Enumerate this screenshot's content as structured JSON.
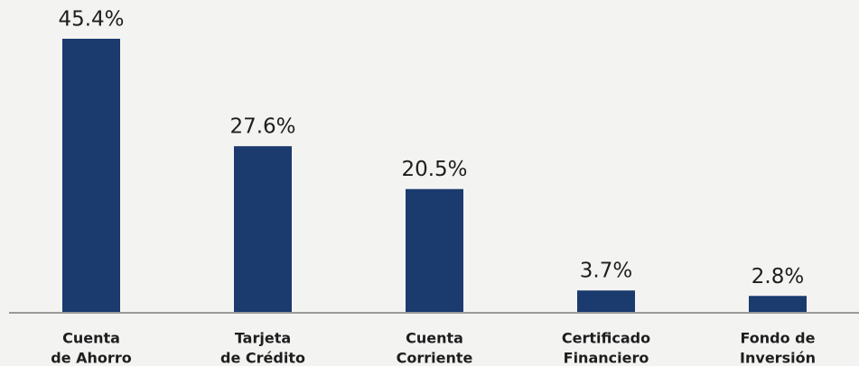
{
  "chart_data": {
    "type": "bar",
    "categories": [
      [
        "Cuenta",
        "de Ahorro"
      ],
      [
        "Tarjeta",
        "de Crédito"
      ],
      [
        "Cuenta",
        "Corriente"
      ],
      [
        "Certificado",
        "Financiero"
      ],
      [
        "Fondo de",
        "Inversión"
      ]
    ],
    "values": [
      45.4,
      27.6,
      20.5,
      3.7,
      2.8
    ],
    "value_labels": [
      "45.4%",
      "27.6%",
      "20.5%",
      "3.7%",
      "2.8%"
    ],
    "color": "#1b3a6e"
  }
}
